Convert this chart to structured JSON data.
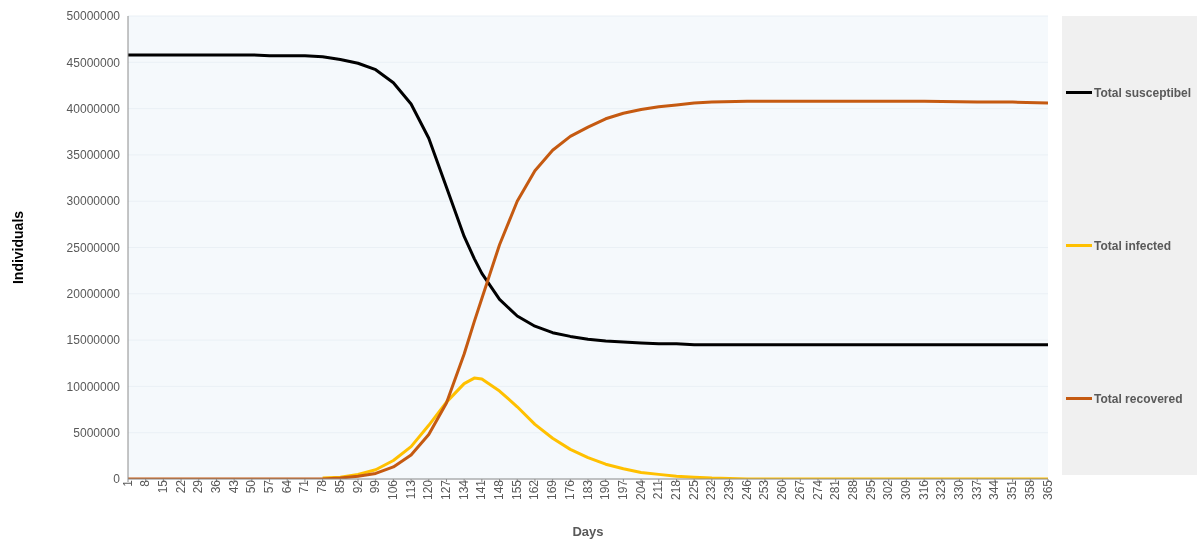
{
  "chart_data": {
    "type": "line",
    "xlabel": "Days",
    "ylabel": "Individuals",
    "x": [
      1,
      8,
      15,
      22,
      29,
      36,
      43,
      50,
      57,
      64,
      71,
      78,
      85,
      92,
      99,
      106,
      113,
      120,
      127,
      134,
      138,
      141,
      148,
      155,
      162,
      169,
      176,
      183,
      190,
      197,
      204,
      211,
      218,
      225,
      232,
      246,
      260,
      288,
      316,
      337,
      351,
      365
    ],
    "series": [
      {
        "name": "Total susceptibel",
        "color": "#000000",
        "values": [
          45800000,
          45800000,
          45800000,
          45800000,
          45800000,
          45800000,
          45800000,
          45800000,
          45700000,
          45700000,
          45700000,
          45600000,
          45300000,
          44900000,
          44200000,
          42800000,
          40500000,
          36800000,
          31500000,
          26200000,
          23800000,
          22200000,
          19400000,
          17600000,
          16500000,
          15800000,
          15400000,
          15100000,
          14900000,
          14800000,
          14700000,
          14600000,
          14600000,
          14500000,
          14500000,
          14500000,
          14500000,
          14500000,
          14500000,
          14500000,
          14500000,
          14500000
        ]
      },
      {
        "name": "Total infected",
        "color": "#ffc000",
        "values": [
          null,
          null,
          null,
          null,
          null,
          null,
          null,
          null,
          null,
          null,
          null,
          100000,
          200000,
          500000,
          1000000,
          2000000,
          3500000,
          5800000,
          8300000,
          10300000,
          10900000,
          10800000,
          9500000,
          7800000,
          5900000,
          4400000,
          3200000,
          2300000,
          1600000,
          1100000,
          700000,
          500000,
          300000,
          200000,
          100000,
          0,
          0,
          0,
          0,
          0,
          0,
          0
        ]
      },
      {
        "name": "Total recovered",
        "color": "#c55a11",
        "values": [
          0,
          0,
          0,
          0,
          0,
          0,
          0,
          0,
          0,
          0,
          0,
          0,
          100000,
          300000,
          600000,
          1300000,
          2600000,
          4800000,
          8200000,
          13500000,
          17000000,
          19500000,
          25300000,
          30000000,
          33300000,
          35500000,
          37000000,
          38000000,
          38900000,
          39500000,
          39900000,
          40200000,
          40400000,
          40600000,
          40700000,
          40800000,
          40800000,
          40800000,
          40800000,
          40700000,
          40700000,
          40600000
        ]
      }
    ],
    "xlim": [
      1,
      365
    ],
    "xticks": [
      1,
      8,
      15,
      22,
      29,
      36,
      43,
      50,
      57,
      64,
      71,
      78,
      85,
      92,
      99,
      106,
      113,
      120,
      127,
      134,
      141,
      148,
      155,
      162,
      169,
      176,
      183,
      190,
      197,
      204,
      211,
      218,
      225,
      232,
      239,
      246,
      253,
      260,
      267,
      274,
      281,
      288,
      295,
      302,
      309,
      316,
      323,
      330,
      337,
      344,
      351,
      358,
      365
    ],
    "ylim": [
      0,
      50000000
    ],
    "yticks": [
      0,
      5000000,
      10000000,
      15000000,
      20000000,
      25000000,
      30000000,
      35000000,
      40000000,
      45000000,
      50000000
    ],
    "grid": "y",
    "legend": "right",
    "marker": "none",
    "line_style": "solid"
  }
}
